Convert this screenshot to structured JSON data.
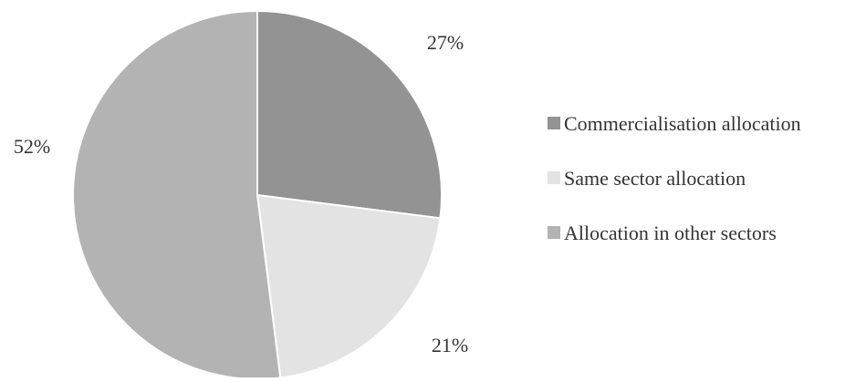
{
  "chart_data": {
    "type": "pie",
    "title": "",
    "slices": [
      {
        "label": "Commercialisation allocation",
        "value": 27,
        "display": "27%",
        "color": "#939393"
      },
      {
        "label": "Same sector allocation",
        "value": 21,
        "display": "21%",
        "color": "#e3e3e3"
      },
      {
        "label": "Allocation in other sectors",
        "value": 52,
        "display": "52%",
        "color": "#b3b3b3"
      }
    ],
    "start_angle_deg": 0,
    "direction": "clockwise",
    "legend_position": "right"
  }
}
